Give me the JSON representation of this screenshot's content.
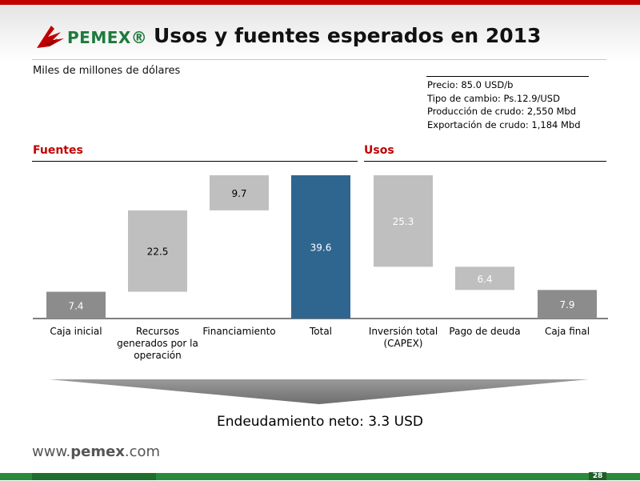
{
  "header": {
    "logo_text": "PEMEX®",
    "title": "Usos y fuentes esperados en 2013",
    "subtitle": "Miles de millones de dólares"
  },
  "assumptions": [
    "Precio: 85.0 USD/b",
    "Tipo de cambio: Ps.12.9/USD",
    "Producción de crudo: 2,550 Mbd",
    "Exportación de crudo: 1,184 Mbd"
  ],
  "sections": {
    "sources_label": "Fuentes",
    "uses_label": "Usos"
  },
  "chart_data": {
    "type": "bar",
    "subtype": "waterfall",
    "ylim": [
      0,
      39.6
    ],
    "categories": [
      [
        "Caja inicial"
      ],
      [
        "Recursos",
        "generados por la",
        "operación"
      ],
      [
        "Financiamiento"
      ],
      [
        "Total"
      ],
      [
        "Inversión total",
        "(CAPEX)"
      ],
      [
        "Pago de deuda"
      ],
      [
        "Caja final"
      ]
    ],
    "bars": [
      {
        "value": 7.4,
        "base": 0,
        "label": "7.4",
        "color": "#8c8c8c",
        "text_color": "#ffffff"
      },
      {
        "value": 22.5,
        "base": 7.4,
        "label": "22.5",
        "color": "#bfbfbf",
        "text_color": "#000000"
      },
      {
        "value": 9.7,
        "base": 29.9,
        "label": "9.7",
        "color": "#bfbfbf",
        "text_color": "#000000"
      },
      {
        "value": 39.6,
        "base": 0,
        "label": "39.6",
        "color": "#2e6690",
        "text_color": "#ffffff"
      },
      {
        "value": 25.3,
        "base": 14.3,
        "label": "25.3",
        "color": "#bfbfbf",
        "text_color": "#ffffff"
      },
      {
        "value": 6.4,
        "base": 7.9,
        "label": "6.4",
        "color": "#bfbfbf",
        "text_color": "#ffffff"
      },
      {
        "value": 7.9,
        "base": 0,
        "label": "7.9",
        "color": "#8c8c8c",
        "text_color": "#ffffff"
      }
    ]
  },
  "net_debt": {
    "label": "Endeudamiento neto",
    "value": "3.3 USD"
  },
  "footer": {
    "url_prefix": "www.",
    "url_brand": "pemex",
    "url_suffix": ".com",
    "page_number": "28"
  },
  "colors": {
    "brand_red": "#c00000",
    "brand_green": "#1d7a3c",
    "total_blue": "#2e6690"
  }
}
